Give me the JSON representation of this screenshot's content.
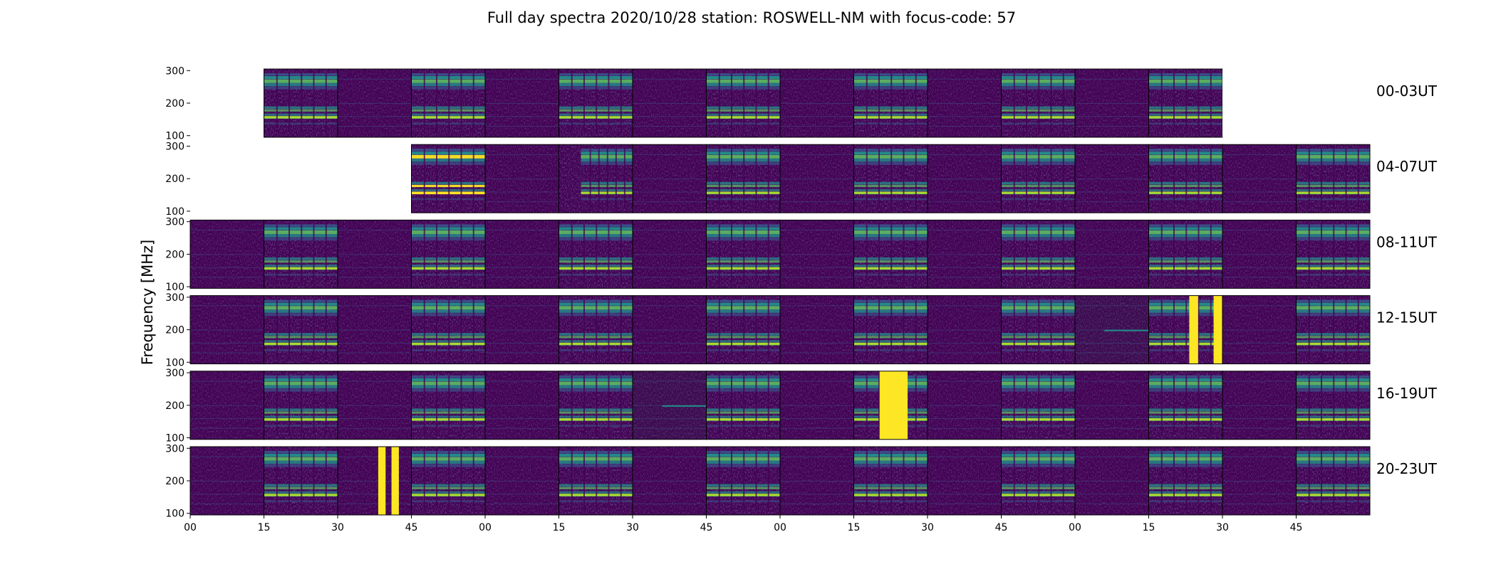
{
  "chart_data": {
    "type": "heatmap",
    "title": "Full day spectra 2020/10/28 station: ROSWELL-NM with focus-code: 57",
    "ylabel": "Frequency [MHz]",
    "xlabel": "",
    "ylim": [
      95,
      305
    ],
    "yticks": [
      100,
      200,
      300
    ],
    "xticks": [
      "00",
      "15",
      "30",
      "45",
      "00",
      "15",
      "30",
      "45",
      "00",
      "15",
      "30",
      "45",
      "00",
      "15",
      "30",
      "45"
    ],
    "colormap": "viridis",
    "colors": {
      "background": "#440154",
      "low": "#3b528b",
      "mid": "#21918c",
      "high": "#5ec962",
      "peak": "#fde725"
    },
    "rows": [
      {
        "label": "00-03UT",
        "panels": [
          "empty",
          "active",
          "quiet",
          "active",
          "quiet",
          "active",
          "quiet",
          "active",
          "quiet",
          "active",
          "quiet",
          "active",
          "quiet",
          "active",
          "empty",
          "empty"
        ]
      },
      {
        "label": "04-07UT",
        "panels": [
          "empty",
          "empty",
          "empty",
          "active-strong",
          "quiet",
          "active-partial",
          "quiet",
          "active",
          "quiet",
          "active",
          "quiet",
          "active",
          "quiet",
          "active",
          "quiet",
          "active"
        ]
      },
      {
        "label": "08-11UT",
        "panels": [
          "quiet",
          "active",
          "quiet",
          "active",
          "quiet",
          "active",
          "quiet",
          "active",
          "quiet",
          "active",
          "quiet",
          "active",
          "quiet",
          "active",
          "quiet",
          "active"
        ]
      },
      {
        "label": "12-15UT",
        "panels": [
          "quiet",
          "active",
          "quiet",
          "active",
          "quiet",
          "active",
          "quiet",
          "active",
          "quiet",
          "active",
          "quiet",
          "active",
          "quiet-dark",
          "active-bursts",
          "quiet",
          "active"
        ]
      },
      {
        "label": "16-19UT",
        "panels": [
          "quiet",
          "active",
          "quiet",
          "active",
          "quiet",
          "active",
          "quiet-dark",
          "active",
          "quiet",
          "active-saturated",
          "quiet",
          "active",
          "quiet",
          "active",
          "quiet",
          "active"
        ]
      },
      {
        "label": "20-23UT",
        "panels": [
          "quiet",
          "active",
          "quiet-bursts",
          "active",
          "quiet",
          "active",
          "quiet",
          "active",
          "quiet",
          "active",
          "quiet",
          "active",
          "quiet",
          "active",
          "quiet",
          "active"
        ]
      }
    ]
  }
}
